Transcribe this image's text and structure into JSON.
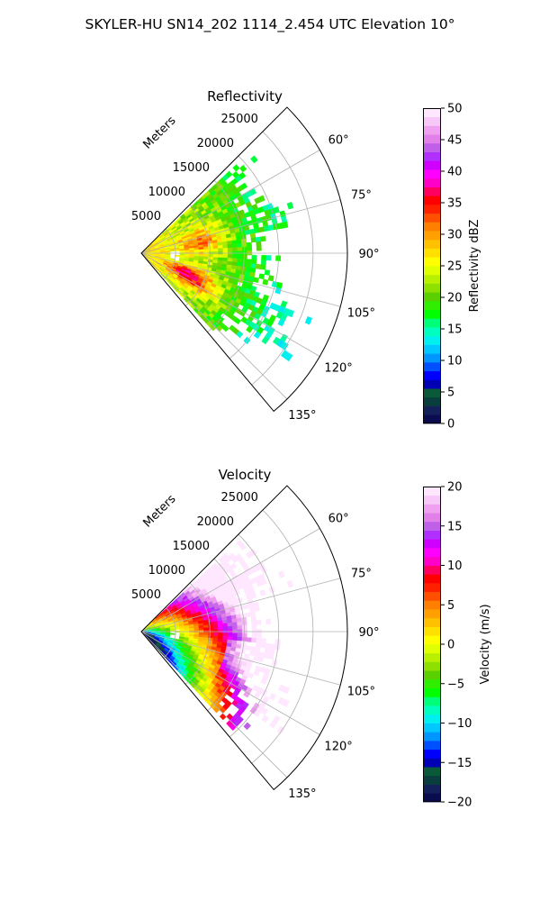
{
  "figure": {
    "title": "SKYLER-HU  SN14_202  1114_2.454 UTC Elevation 10°"
  },
  "chart_data": [
    {
      "type": "heatmap",
      "projection": "polar-sector",
      "title": "Reflectivity",
      "radial_label": "Meters",
      "radial_ticks": [
        "5000",
        "10000",
        "15000",
        "20000",
        "25000"
      ],
      "radial_tick_values": [
        5000,
        10000,
        15000,
        20000,
        25000
      ],
      "rlim": [
        0,
        30000
      ],
      "theta_ticks": [
        "60°",
        "75°",
        "90°",
        "105°",
        "120°",
        "135°"
      ],
      "theta_tick_values": [
        60,
        75,
        90,
        105,
        120,
        135
      ],
      "theta_range": [
        45,
        140
      ],
      "grid": true,
      "colorbar": {
        "label": "Reflectivity dBZ",
        "ticks": [
          "0",
          "5",
          "10",
          "15",
          "20",
          "25",
          "30",
          "35",
          "40",
          "45",
          "50"
        ],
        "range": [
          0,
          50
        ],
        "colors": [
          "#0b0b50",
          "#13205a",
          "#0a3d3d",
          "#0a5a3a",
          "#0000b4",
          "#0000ff",
          "#0050ff",
          "#0096ff",
          "#00c8ff",
          "#00f0f0",
          "#00ffbe",
          "#00ff78",
          "#00ff00",
          "#30ee00",
          "#5ad000",
          "#8ee000",
          "#b8f000",
          "#e0ff00",
          "#ffff00",
          "#ffe000",
          "#ffc000",
          "#ffa000",
          "#ff8000",
          "#ff5000",
          "#ff2000",
          "#ff0000",
          "#ff0060",
          "#ff00c8",
          "#ff00ff",
          "#d000ff",
          "#b030ff",
          "#c060e8",
          "#e080e8",
          "#f0a0f0",
          "#f8c8f8",
          "#ffe8ff"
        ]
      }
    },
    {
      "type": "heatmap",
      "projection": "polar-sector",
      "title": "Velocity",
      "radial_label": "Meters",
      "radial_ticks": [
        "5000",
        "10000",
        "15000",
        "20000",
        "25000"
      ],
      "radial_tick_values": [
        5000,
        10000,
        15000,
        20000,
        25000
      ],
      "rlim": [
        0,
        30000
      ],
      "theta_ticks": [
        "60°",
        "75°",
        "90°",
        "105°",
        "120°",
        "135°"
      ],
      "theta_tick_values": [
        60,
        75,
        90,
        105,
        120,
        135
      ],
      "theta_range": [
        45,
        140
      ],
      "grid": true,
      "colorbar": {
        "label": "Velocity (m/s)",
        "ticks": [
          "−20",
          "−15",
          "−10",
          "−5",
          "0",
          "5",
          "10",
          "15",
          "20"
        ],
        "range": [
          -20,
          20
        ],
        "colors": [
          "#0b0b50",
          "#13205a",
          "#0a3d3d",
          "#0a5a3a",
          "#0000b4",
          "#0000ff",
          "#0050ff",
          "#0096ff",
          "#00c8ff",
          "#00f0f0",
          "#00ffbe",
          "#00ff78",
          "#00ff00",
          "#30ee00",
          "#5ad000",
          "#8ee000",
          "#b8f000",
          "#e0ff00",
          "#ffff00",
          "#ffe000",
          "#ffc000",
          "#ffa000",
          "#ff8000",
          "#ff5000",
          "#ff2000",
          "#ff0000",
          "#ff0060",
          "#ff00c8",
          "#ff00ff",
          "#d000ff",
          "#b030ff",
          "#c060e8",
          "#e080e8",
          "#f0a0f0",
          "#f8c8f8",
          "#ffe8ff"
        ]
      }
    }
  ]
}
